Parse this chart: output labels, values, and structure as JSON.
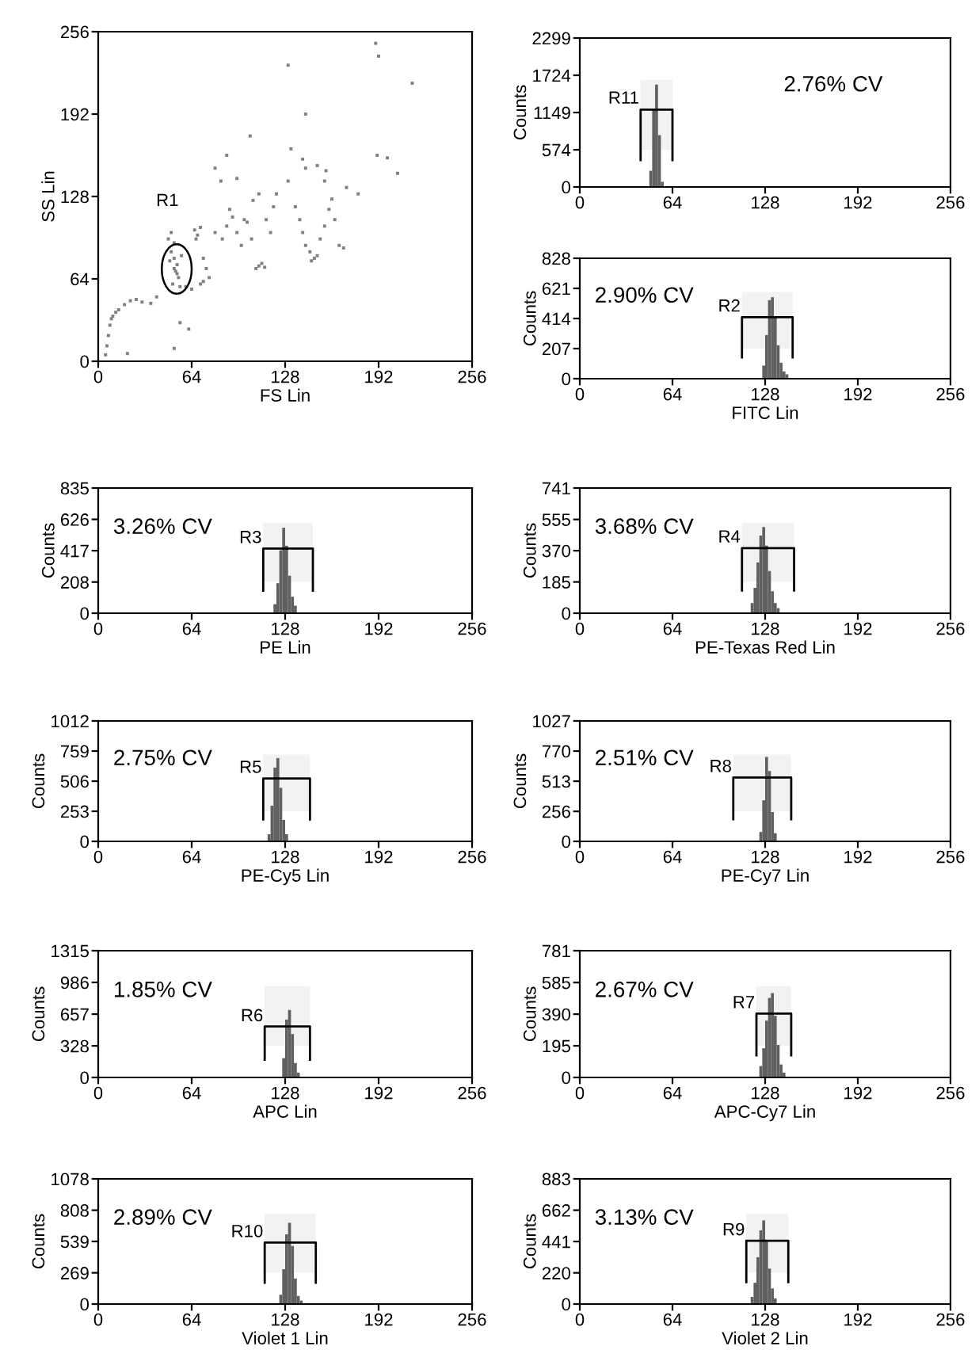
{
  "chart_data": [
    {
      "type": "scatter",
      "xlabel": "FS Lin",
      "ylabel": "SS Lin",
      "xlim": [
        0,
        256
      ],
      "ylim": [
        0,
        256
      ],
      "xticks": [
        0,
        64,
        128,
        192,
        256
      ],
      "yticks": [
        0,
        64,
        128,
        192,
        256
      ],
      "grid": false,
      "marker": "square",
      "color": "#808080",
      "x": [
        5,
        6,
        7,
        8,
        9,
        10,
        12,
        14,
        18,
        22,
        26,
        30,
        36,
        40,
        20,
        52,
        62,
        56,
        48,
        50,
        52,
        50,
        52,
        54,
        53,
        55,
        51,
        56,
        52,
        54,
        49,
        57,
        66,
        68,
        70,
        67,
        72,
        74,
        76,
        70,
        64,
        72,
        60,
        80,
        85,
        88,
        90,
        92,
        95,
        98,
        100,
        102,
        105,
        108,
        110,
        112,
        114,
        106,
        110,
        115,
        118,
        120,
        122,
        80,
        84,
        88,
        95,
        104,
        132,
        130,
        135,
        138,
        140,
        142,
        145,
        146,
        148,
        150,
        152,
        155,
        158,
        160,
        162,
        165,
        168,
        155,
        142,
        150,
        170,
        130,
        142,
        190,
        192,
        215,
        198,
        205,
        191,
        178,
        140,
        156
      ],
      "values": [
        5,
        12,
        20,
        28,
        33,
        35,
        38,
        40,
        44,
        47,
        48,
        46,
        45,
        50,
        6,
        10,
        25,
        30,
        95,
        100,
        92,
        85,
        80,
        75,
        70,
        65,
        60,
        58,
        72,
        68,
        78,
        82,
        102,
        98,
        104,
        95,
        80,
        72,
        65,
        60,
        56,
        62,
        58,
        100,
        95,
        105,
        118,
        112,
        100,
        90,
        110,
        108,
        95,
        72,
        74,
        76,
        73,
        125,
        130,
        110,
        100,
        120,
        130,
        150,
        140,
        160,
        142,
        175,
        165,
        140,
        120,
        110,
        100,
        90,
        85,
        78,
        80,
        82,
        95,
        105,
        118,
        126,
        110,
        90,
        88,
        140,
        150,
        152,
        135,
        230,
        192,
        247,
        237,
        216,
        158,
        146,
        160,
        130,
        157,
        148
      ],
      "annotations": [
        "R1"
      ]
    },
    {
      "type": "histogram",
      "ylabel": "Counts",
      "xlim": [
        0,
        256
      ],
      "ylim": [
        0,
        2299
      ],
      "xticks": [
        0,
        64,
        128,
        192,
        256
      ],
      "yticks": [
        0,
        574,
        1149,
        1724,
        2299
      ],
      "color": "#606060",
      "bins": [
        48,
        50,
        52,
        54,
        56,
        58
      ],
      "values": [
        250,
        1200,
        1580,
        800,
        80
      ],
      "bands": [
        {
          "axis": "x",
          "from": 42,
          "to": 64,
          "label": "R11"
        }
      ],
      "annotations": [
        "2.76% CV"
      ]
    },
    {
      "type": "histogram",
      "xlabel": "FITC Lin",
      "ylabel": "Counts",
      "xlim": [
        0,
        256
      ],
      "ylim": [
        0,
        828
      ],
      "xticks": [
        0,
        64,
        128,
        192,
        256
      ],
      "yticks": [
        0,
        207,
        414,
        621,
        828
      ],
      "color": "#606060",
      "bins": [
        126,
        128,
        130,
        132,
        134,
        136,
        138,
        140,
        142,
        144
      ],
      "values": [
        90,
        300,
        540,
        560,
        420,
        230,
        110,
        50,
        30
      ],
      "bands": [
        {
          "axis": "x",
          "from": 112,
          "to": 147,
          "label": "R2"
        }
      ],
      "annotations": [
        "2.90% CV"
      ]
    },
    {
      "type": "histogram",
      "xlabel": "PE Lin",
      "ylabel": "Counts",
      "xlim": [
        0,
        256
      ],
      "ylim": [
        0,
        835
      ],
      "xticks": [
        0,
        64,
        128,
        192,
        256
      ],
      "yticks": [
        0,
        208,
        417,
        626,
        835
      ],
      "color": "#606060",
      "bins": [
        120,
        122,
        124,
        126,
        128,
        130,
        132,
        134,
        136
      ],
      "values": [
        60,
        200,
        420,
        570,
        450,
        250,
        110,
        50
      ],
      "bands": [
        {
          "axis": "x",
          "from": 113,
          "to": 147,
          "label": "R3"
        }
      ],
      "annotations": [
        "3.26% CV"
      ]
    },
    {
      "type": "histogram",
      "xlabel": "PE-Texas Red Lin",
      "ylabel": "Counts",
      "xlim": [
        0,
        256
      ],
      "ylim": [
        0,
        741
      ],
      "xticks": [
        0,
        64,
        128,
        192,
        256
      ],
      "yticks": [
        0,
        185,
        370,
        555,
        741
      ],
      "color": "#606060",
      "bins": [
        118,
        120,
        122,
        124,
        126,
        128,
        130,
        132,
        134,
        136,
        138
      ],
      "values": [
        60,
        150,
        300,
        460,
        510,
        400,
        250,
        130,
        60,
        30
      ],
      "bands": [
        {
          "axis": "x",
          "from": 112,
          "to": 148,
          "label": "R4"
        }
      ],
      "annotations": [
        "3.68% CV"
      ]
    },
    {
      "type": "histogram",
      "xlabel": "PE-Cy5 Lin",
      "ylabel": "Counts",
      "xlim": [
        0,
        256
      ],
      "ylim": [
        0,
        1012
      ],
      "xticks": [
        0,
        64,
        128,
        192,
        256
      ],
      "yticks": [
        0,
        253,
        506,
        759,
        1012
      ],
      "color": "#606060",
      "bins": [
        116,
        118,
        120,
        122,
        124,
        126,
        128,
        130
      ],
      "values": [
        60,
        300,
        620,
        700,
        450,
        180,
        60
      ],
      "bands": [
        {
          "axis": "x",
          "from": 113,
          "to": 145,
          "label": "R5"
        }
      ],
      "annotations": [
        "2.75% CV"
      ]
    },
    {
      "type": "histogram",
      "xlabel": "PE-Cy7 Lin",
      "ylabel": "Counts",
      "xlim": [
        0,
        256
      ],
      "ylim": [
        0,
        1027
      ],
      "xticks": [
        0,
        64,
        128,
        192,
        256
      ],
      "yticks": [
        0,
        256,
        513,
        770,
        1027
      ],
      "color": "#606060",
      "bins": [
        124,
        126,
        128,
        130,
        132,
        134,
        136
      ],
      "values": [
        80,
        350,
        720,
        600,
        250,
        70
      ],
      "bands": [
        {
          "axis": "x",
          "from": 106,
          "to": 146,
          "label": "R8"
        }
      ],
      "annotations": [
        "2.51% CV"
      ]
    },
    {
      "type": "histogram",
      "xlabel": "APC Lin",
      "ylabel": "Counts",
      "xlim": [
        0,
        256
      ],
      "ylim": [
        0,
        1315
      ],
      "xticks": [
        0,
        64,
        128,
        192,
        256
      ],
      "yticks": [
        0,
        328,
        657,
        986,
        1315
      ],
      "color": "#606060",
      "bins": [
        126,
        128,
        130,
        132,
        134,
        136,
        138
      ],
      "values": [
        200,
        600,
        700,
        450,
        150,
        50
      ],
      "bands": [
        {
          "axis": "x",
          "from": 114,
          "to": 145,
          "label": "R6"
        }
      ],
      "annotations": [
        "1.85% CV"
      ]
    },
    {
      "type": "histogram",
      "xlabel": "APC-Cy7 Lin",
      "ylabel": "Counts",
      "xlim": [
        0,
        256
      ],
      "ylim": [
        0,
        781
      ],
      "xticks": [
        0,
        64,
        128,
        192,
        256
      ],
      "yticks": [
        0,
        195,
        390,
        585,
        781
      ],
      "color": "#606060",
      "bins": [
        124,
        126,
        128,
        130,
        132,
        134,
        136,
        138,
        140,
        142
      ],
      "values": [
        70,
        180,
        350,
        490,
        520,
        380,
        200,
        80,
        30
      ],
      "bands": [
        {
          "axis": "x",
          "from": 122,
          "to": 146,
          "label": "R7"
        }
      ],
      "annotations": [
        "2.67% CV"
      ]
    },
    {
      "type": "histogram",
      "xlabel": "Violet 1 Lin",
      "ylabel": "Counts",
      "xlim": [
        0,
        256
      ],
      "ylim": [
        0,
        1078
      ],
      "xticks": [
        0,
        64,
        128,
        192,
        256
      ],
      "yticks": [
        0,
        269,
        539,
        808,
        1078
      ],
      "color": "#606060",
      "bins": [
        124,
        126,
        128,
        130,
        132,
        134,
        136,
        138,
        140
      ],
      "values": [
        80,
        300,
        600,
        700,
        500,
        220,
        70,
        30
      ],
      "bands": [
        {
          "axis": "x",
          "from": 114,
          "to": 149,
          "label": "R10"
        }
      ],
      "annotations": [
        "2.89% CV"
      ]
    },
    {
      "type": "histogram",
      "xlabel": "Violet 2 Lin",
      "ylabel": "Counts",
      "xlim": [
        0,
        256
      ],
      "ylim": [
        0,
        883
      ],
      "xticks": [
        0,
        64,
        128,
        192,
        256
      ],
      "yticks": [
        0,
        220,
        441,
        662,
        883
      ],
      "color": "#606060",
      "bins": [
        118,
        120,
        122,
        124,
        126,
        128,
        130,
        132,
        134,
        136
      ],
      "values": [
        50,
        150,
        330,
        520,
        590,
        450,
        250,
        110,
        40
      ],
      "bands": [
        {
          "axis": "x",
          "from": 115,
          "to": 144,
          "label": "R9"
        }
      ],
      "annotations": [
        "3.13% CV"
      ]
    }
  ]
}
